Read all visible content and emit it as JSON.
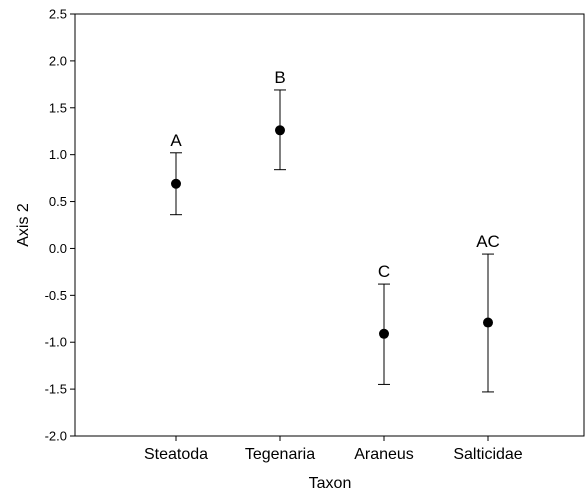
{
  "chart_data": {
    "type": "scatter",
    "xlabel": "Taxon",
    "ylabel": "Axis 2",
    "categories": [
      "Steatoda",
      "Tegenaria",
      "Araneus",
      "Salticidae"
    ],
    "ylim": [
      -2.0,
      2.5
    ],
    "yticks": [
      "-2.0",
      "-1.5",
      "-1.0",
      "-0.5",
      "0.0",
      "0.5",
      "1.0",
      "1.5",
      "2.0",
      "2.5"
    ],
    "ytick_values": [
      -2.0,
      -1.5,
      -1.0,
      -0.5,
      0.0,
      0.5,
      1.0,
      1.5,
      2.0,
      2.5
    ],
    "series": [
      {
        "means": [
          0.69,
          1.26,
          -0.91,
          -0.79
        ],
        "upper": [
          1.02,
          1.69,
          -0.38,
          -0.06
        ],
        "lower": [
          0.36,
          0.84,
          -1.45,
          -1.53
        ],
        "group_letters": [
          "A",
          "B",
          "C",
          "AC"
        ]
      }
    ],
    "grid": false
  }
}
